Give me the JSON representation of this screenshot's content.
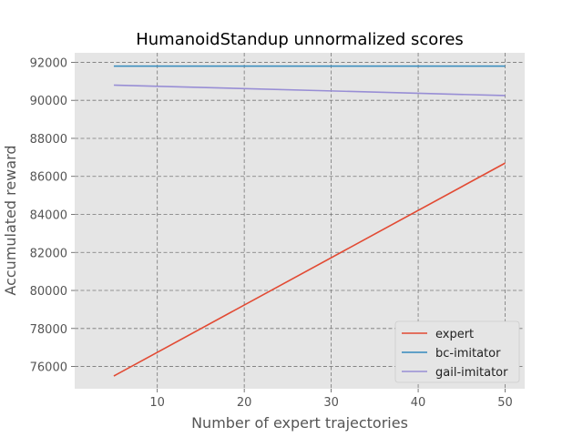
{
  "chart_data": {
    "type": "line",
    "title": "HumanoidStandup unnormalized scores",
    "xlabel": "Number of expert trajectories",
    "ylabel": "Accumulated reward",
    "xlim": [
      0.5,
      52.25
    ],
    "ylim": [
      74830,
      92500
    ],
    "xticks": [
      10,
      20,
      30,
      40,
      50
    ],
    "yticks": [
      76000,
      78000,
      80000,
      82000,
      84000,
      86000,
      88000,
      90000,
      92000
    ],
    "grid": true,
    "legend_position": "lower-right",
    "series": [
      {
        "name": "expert",
        "color": "#E24A33",
        "x": [
          5,
          50
        ],
        "y": [
          75500,
          86700
        ]
      },
      {
        "name": "bc-imitator",
        "color": "#348ABD",
        "x": [
          5,
          50
        ],
        "y": [
          91800,
          91800
        ]
      },
      {
        "name": "gail-imitator",
        "color": "#988ED5",
        "x": [
          5,
          50
        ],
        "y": [
          90800,
          90250
        ]
      }
    ]
  }
}
